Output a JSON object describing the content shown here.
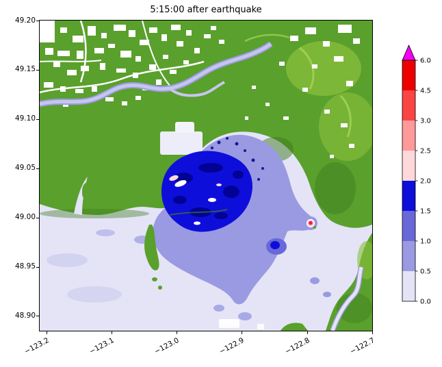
{
  "title": "5:15:00 after earthquake",
  "chart_data": {
    "type": "heatmap",
    "title": "5:15:00 after earthquake",
    "xlabel": "",
    "ylabel": "",
    "grid": false,
    "legend_position": "right-colorbar",
    "x_range": [
      -123.21,
      -122.7
    ],
    "y_range": [
      48.885,
      49.2
    ],
    "x_ticks": [
      {
        "value": -123.2,
        "label": "−123.2"
      },
      {
        "value": -123.1,
        "label": "−123.1"
      },
      {
        "value": -123.0,
        "label": "−123.0"
      },
      {
        "value": -122.9,
        "label": "−122.9"
      },
      {
        "value": -122.8,
        "label": "−122.8"
      },
      {
        "value": -122.7,
        "label": "−122.7"
      }
    ],
    "y_ticks": [
      {
        "value": 49.2,
        "label": "49.20"
      },
      {
        "value": 49.15,
        "label": "49.15"
      },
      {
        "value": 49.1,
        "label": "49.10"
      },
      {
        "value": 49.05,
        "label": "49.05"
      },
      {
        "value": 49.0,
        "label": "49.00"
      },
      {
        "value": 48.95,
        "label": "48.95"
      },
      {
        "value": 48.9,
        "label": "48.90"
      }
    ],
    "colorbar": {
      "orientation": "vertical",
      "extend_above": true,
      "bounds": [
        0.0,
        0.5,
        1.0,
        1.5,
        2.0,
        2.5,
        3.0,
        4.5,
        6.0
      ],
      "tick_labels": [
        "0.0",
        "0.5",
        "1.0",
        "1.5",
        "2.0",
        "2.5",
        "3.0",
        "4.5",
        "6.0"
      ],
      "segments": [
        {
          "range": [
            0.0,
            0.5
          ],
          "color": "#e4e4f6"
        },
        {
          "range": [
            0.5,
            1.0
          ],
          "color": "#9a9ae2"
        },
        {
          "range": [
            1.0,
            1.5
          ],
          "color": "#6868d8"
        },
        {
          "range": [
            1.5,
            2.0
          ],
          "color": "#0e0edb"
        },
        {
          "range": [
            2.0,
            2.5
          ],
          "color": "#ffd9d9"
        },
        {
          "range": [
            2.5,
            3.0
          ],
          "color": "#ff9a9a"
        },
        {
          "range": [
            3.0,
            4.5
          ],
          "color": "#fb4444"
        },
        {
          "range": [
            4.5,
            6.0
          ],
          "color": "#ec0000"
        }
      ],
      "over_color": "#f400f4"
    },
    "map_palette": {
      "land_green": "#5aa02c",
      "land_green_dark": "#3c7a1e",
      "land_green_light": "#8abf3c",
      "land_green_ridge": "#a6d45a",
      "urban_white": "#ffffff",
      "pale_block": "#ededfa",
      "river": "#c6c6ee",
      "depth_0_to_0_5": "#e4e4f6",
      "depth_0_5_to_1": "#9a9ae2",
      "depth_1_to_1_5": "#6868d8",
      "depth_1_5_to_2": "#0e0edb",
      "depth_deep_navy": "#000088",
      "hot_spot_pale_pink": "#ffd9d9",
      "hot_spot_pink": "#ff9a9a",
      "hot_spot_red": "#ec1c1c",
      "hot_spot_magenta": "#f400f4"
    },
    "regions_depicted": [
      "green dry land across the north and east with scattered white urban patches",
      "pale river channel winding northeastward through the northern land",
      "broad pale-lavender shallow flood zone (0–0.5) over the southwest lowland and bay",
      "periwinkle 0.5–1.5 flood lobe filling the central lowland",
      "deep blue 1.5–2.0 flood core near (−123.0, 49.02) with darker navy patches and small white/pink spots",
      "small extreme-depth spot ringed red/pink/white near (−122.78, 48.99)",
      "green hills in the bottom-right corner cut by a narrow pale channel"
    ]
  }
}
